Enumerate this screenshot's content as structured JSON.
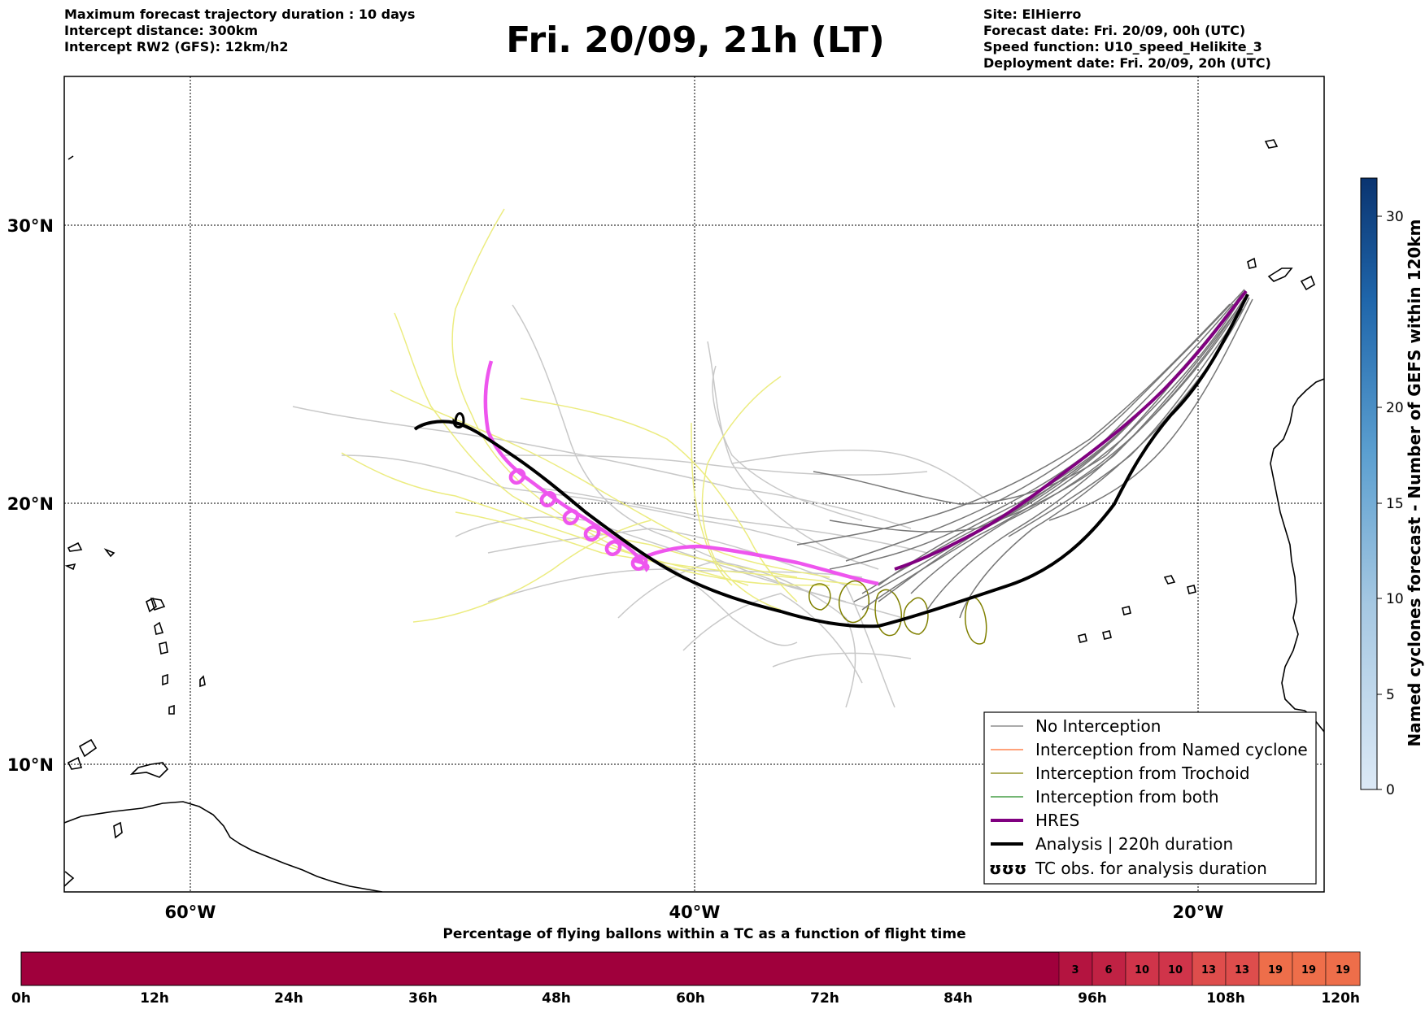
{
  "header": {
    "left_lines": [
      "Maximum forecast trajectory duration : 10 days",
      "Intercept distance: 300km",
      "Intercept RW2 (GFS):  12km/h2"
    ],
    "title": "Fri. 20/09, 21h (LT)",
    "right_lines": [
      "Site: ElHierro",
      "Forecast date: Fri. 20/09, 00h (UTC)",
      "Speed function: U10_speed_Helikite_3",
      "Deployment date: Fri. 20/09, 20h (UTC)"
    ]
  },
  "map": {
    "lat_labels": [
      "30°N",
      "20°N",
      "10°N"
    ],
    "lon_labels": [
      "60°W",
      "40°W",
      "20°W"
    ],
    "lon_range": [
      -65,
      -15
    ],
    "lat_range": [
      5,
      35
    ],
    "colors": {
      "no_interception": "#777777",
      "named_cyclone": "#ff6a2a",
      "trochoid": "#808000",
      "both": "#228b22",
      "hres": "#800080",
      "analysis": "#000000",
      "magenta_track": "#ee55ee",
      "gefs_light": "#c8c8c8",
      "yellow_tracks": "#ecec80",
      "coast": "#000000"
    }
  },
  "legend": {
    "items": [
      {
        "label": "No Interception",
        "color": "#777777",
        "width": 1.2
      },
      {
        "label": "Interception from Named cyclone",
        "color": "#ff6a2a",
        "width": 1.2
      },
      {
        "label": "Interception from Trochoid",
        "color": "#808000",
        "width": 1.2
      },
      {
        "label": "Interception from both",
        "color": "#228b22",
        "width": 1.2
      },
      {
        "label": "HRES",
        "color": "#800080",
        "width": 4
      },
      {
        "label": "Analysis | 220h duration",
        "color": "#000000",
        "width": 4
      },
      {
        "label": "TC obs. for analysis duration",
        "color": "#000000",
        "width": 0,
        "symbol": "ʊʊʊ"
      }
    ]
  },
  "colorbar": {
    "title": "Named cyclones forecast - Number of GEFS within 120km",
    "ticks": [
      "0",
      "5",
      "10",
      "15",
      "20",
      "30"
    ],
    "range": [
      0,
      32
    ]
  },
  "bottom_bar": {
    "title": "Percentage of flying ballons within a TC as a function of flight time",
    "tick_labels": [
      "0h",
      "12h",
      "24h",
      "36h",
      "48h",
      "60h",
      "72h",
      "84h",
      "96h",
      "108h",
      "120h"
    ],
    "cells": [
      {
        "value": "3"
      },
      {
        "value": "6"
      },
      {
        "value": "10"
      },
      {
        "value": "10"
      },
      {
        "value": "13"
      },
      {
        "value": "13"
      },
      {
        "value": "19"
      },
      {
        "value": "19"
      },
      {
        "value": "19"
      }
    ],
    "base_color": "#a0003c"
  }
}
